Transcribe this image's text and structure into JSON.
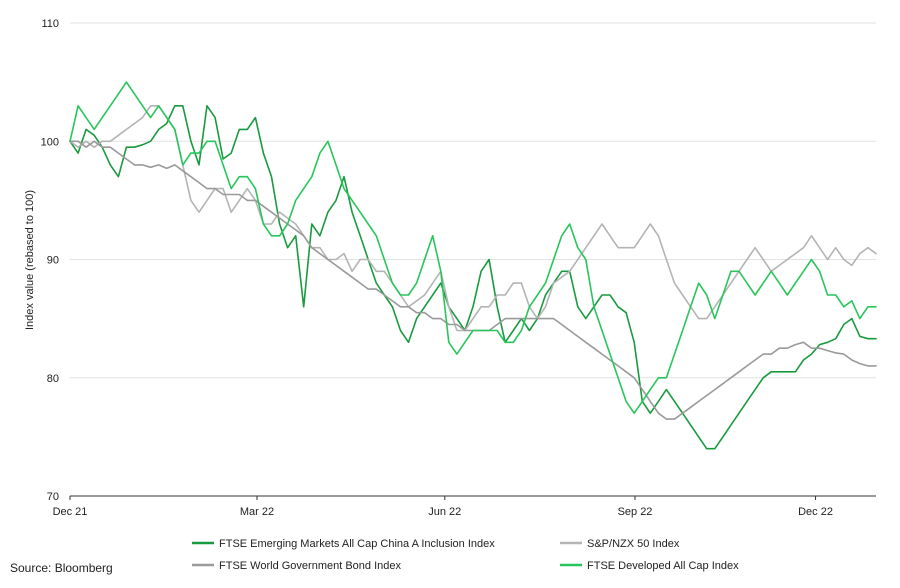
{
  "chart_data": {
    "type": "line",
    "ylabel": "Index value (rebased to 100)",
    "ylim": [
      70,
      110
    ],
    "yticks": [
      70,
      80,
      90,
      100,
      110
    ],
    "xlim": [
      0,
      100
    ],
    "xticks": [
      {
        "label": "Dec 21",
        "x": 0
      },
      {
        "label": "Mar 22",
        "x": 23.2
      },
      {
        "label": "Jun 22",
        "x": 46.5
      },
      {
        "label": "Sep 22",
        "x": 70.1
      },
      {
        "label": "Dec 22",
        "x": 92.5
      }
    ],
    "grid": "horizontal",
    "legend_position": "bottom",
    "series": [
      {
        "name": "FTSE Emerging Markets All Cap China A Inclusion Index",
        "color": "#1a9a3f",
        "x": [
          0,
          1,
          2,
          3,
          4,
          5,
          6,
          7,
          8,
          9,
          10,
          11,
          12,
          13,
          14,
          15,
          16,
          17,
          18,
          19,
          20,
          21,
          22,
          23,
          24,
          25,
          26,
          27,
          28,
          29,
          30,
          31,
          32,
          33,
          34,
          35,
          36,
          37,
          38,
          39,
          40,
          41,
          42,
          43,
          44,
          45,
          46,
          47,
          48,
          49,
          50,
          51,
          52,
          53,
          54,
          55,
          56,
          57,
          58,
          59,
          60,
          61,
          62,
          63,
          64,
          65,
          66,
          67,
          68,
          69,
          70,
          71,
          72,
          73,
          74,
          75,
          76,
          77,
          78,
          79,
          80,
          81,
          82,
          83,
          84,
          85,
          86,
          87,
          88,
          89,
          90,
          91,
          92,
          93,
          94,
          95,
          96,
          97,
          98,
          99,
          100
        ],
        "values": [
          100,
          99,
          101,
          100.5,
          99.5,
          98,
          97,
          99.5,
          99.5,
          99.7,
          100,
          101,
          101.5,
          103,
          103,
          100,
          98,
          103,
          102,
          98.5,
          99,
          101,
          101,
          102,
          99,
          97,
          93,
          91,
          92,
          86,
          93,
          92,
          94,
          95,
          97,
          94,
          92,
          90,
          88,
          87,
          86,
          84,
          83,
          85,
          86,
          87,
          88,
          86,
          85,
          84,
          86,
          89,
          90,
          86,
          83,
          84,
          85,
          84,
          85,
          87,
          88,
          89,
          89,
          86,
          85,
          86,
          87,
          87,
          86,
          85.5,
          83,
          78,
          77,
          78,
          79,
          78,
          77,
          76,
          75,
          74,
          74,
          75,
          76,
          77,
          78,
          79,
          80,
          80.5,
          80.5,
          80.5,
          80.5,
          81.5,
          82,
          82.8,
          83,
          83.3,
          84.5,
          85,
          83.5,
          83.3,
          83.3
        ]
      },
      {
        "name": "S&P/NZX 50 Index",
        "color": "#b4b4b4",
        "x": [
          0,
          1,
          2,
          3,
          4,
          5,
          6,
          7,
          8,
          9,
          10,
          11,
          12,
          13,
          14,
          15,
          16,
          17,
          18,
          19,
          20,
          21,
          22,
          23,
          24,
          25,
          26,
          27,
          28,
          29,
          30,
          31,
          32,
          33,
          34,
          35,
          36,
          37,
          38,
          39,
          40,
          41,
          42,
          43,
          44,
          45,
          46,
          47,
          48,
          49,
          50,
          51,
          52,
          53,
          54,
          55,
          56,
          57,
          58,
          59,
          60,
          61,
          62,
          63,
          64,
          65,
          66,
          67,
          68,
          69,
          70,
          71,
          72,
          73,
          74,
          75,
          76,
          77,
          78,
          79,
          80,
          81,
          82,
          83,
          84,
          85,
          86,
          87,
          88,
          89,
          90,
          91,
          92,
          93,
          94,
          95,
          96,
          97,
          98,
          99,
          100
        ],
        "values": [
          100,
          99.5,
          100,
          99.5,
          100,
          100,
          100.5,
          101,
          101.5,
          102,
          103,
          103,
          102,
          101,
          98,
          95,
          94,
          95,
          96,
          96,
          94,
          95,
          96,
          95,
          93,
          93,
          94,
          93.5,
          93,
          92,
          91,
          91,
          90,
          90,
          90.5,
          89,
          90,
          90,
          89,
          89,
          88,
          87,
          86,
          86.5,
          87,
          88,
          89,
          86,
          84,
          84,
          85,
          86,
          86,
          87,
          87,
          88,
          88,
          86,
          85,
          86,
          88,
          88.5,
          89,
          90,
          91,
          92,
          93,
          92,
          91,
          91,
          91,
          92,
          93,
          92,
          90,
          88,
          87,
          86,
          85,
          85,
          86,
          87,
          88,
          89,
          90,
          91,
          90,
          89,
          89.5,
          90,
          90.5,
          91,
          92,
          91,
          90,
          91,
          90,
          89.5,
          90.5,
          91,
          90.5
        ]
      },
      {
        "name": "FTSE World Government Bond Index",
        "color": "#9a9a9a",
        "x": [
          0,
          1,
          2,
          3,
          4,
          5,
          6,
          7,
          8,
          9,
          10,
          11,
          12,
          13,
          14,
          15,
          16,
          17,
          18,
          19,
          20,
          21,
          22,
          23,
          24,
          25,
          26,
          27,
          28,
          29,
          30,
          31,
          32,
          33,
          34,
          35,
          36,
          37,
          38,
          39,
          40,
          41,
          42,
          43,
          44,
          45,
          46,
          47,
          48,
          49,
          50,
          51,
          52,
          53,
          54,
          55,
          56,
          57,
          58,
          59,
          60,
          61,
          62,
          63,
          64,
          65,
          66,
          67,
          68,
          69,
          70,
          71,
          72,
          73,
          74,
          75,
          76,
          77,
          78,
          79,
          80,
          81,
          82,
          83,
          84,
          85,
          86,
          87,
          88,
          89,
          90,
          91,
          92,
          93,
          94,
          95,
          96,
          97,
          98,
          99,
          100
        ],
        "values": [
          100,
          100,
          99.5,
          100,
          99.5,
          99.5,
          99,
          98.5,
          98,
          98,
          97.8,
          98,
          97.7,
          98,
          97.5,
          97,
          96.5,
          96,
          96,
          95.5,
          95.5,
          95.5,
          95,
          95,
          94.5,
          94,
          93.5,
          93,
          92.5,
          92,
          91,
          90.5,
          90,
          89.5,
          89,
          88.5,
          88,
          87.5,
          87.5,
          87,
          86.5,
          86,
          86,
          85.5,
          85.5,
          85,
          85,
          84.5,
          84.5,
          84,
          84,
          84,
          84,
          84.5,
          85,
          85,
          85,
          85,
          85,
          85,
          85,
          84.5,
          84,
          83.5,
          83,
          82.5,
          82,
          81.5,
          81,
          80.5,
          80,
          79,
          78,
          77,
          76.5,
          76.5,
          77,
          77.5,
          78,
          78.5,
          79,
          79.5,
          80,
          80.5,
          81,
          81.5,
          82,
          82,
          82.5,
          82.5,
          82.8,
          83,
          82.5,
          82.5,
          82.3,
          82.1,
          82,
          81.5,
          81.2,
          81,
          81
        ]
      },
      {
        "name": "FTSE Developed All Cap Index",
        "color": "#27c65a",
        "x": [
          0,
          1,
          2,
          3,
          4,
          5,
          6,
          7,
          8,
          9,
          10,
          11,
          12,
          13,
          14,
          15,
          16,
          17,
          18,
          19,
          20,
          21,
          22,
          23,
          24,
          25,
          26,
          27,
          28,
          29,
          30,
          31,
          32,
          33,
          34,
          35,
          36,
          37,
          38,
          39,
          40,
          41,
          42,
          43,
          44,
          45,
          46,
          47,
          48,
          49,
          50,
          51,
          52,
          53,
          54,
          55,
          56,
          57,
          58,
          59,
          60,
          61,
          62,
          63,
          64,
          65,
          66,
          67,
          68,
          69,
          70,
          71,
          72,
          73,
          74,
          75,
          76,
          77,
          78,
          79,
          80,
          81,
          82,
          83,
          84,
          85,
          86,
          87,
          88,
          89,
          90,
          91,
          92,
          93,
          94,
          95,
          96,
          97,
          98,
          99,
          100
        ],
        "values": [
          100,
          103,
          102,
          101,
          102,
          103,
          104,
          105,
          104,
          103,
          102,
          103,
          102,
          101,
          98,
          99,
          99,
          100,
          100,
          98,
          96,
          97,
          97,
          96,
          93,
          92,
          92,
          93,
          95,
          96,
          97,
          99,
          100,
          98,
          96,
          95,
          94,
          93,
          92,
          90,
          88,
          87,
          87,
          88,
          90,
          92,
          89,
          83,
          82,
          83,
          84,
          84,
          84,
          84,
          83,
          83,
          84,
          86,
          87,
          88,
          90,
          92,
          93,
          91,
          90,
          86,
          84,
          82,
          80,
          78,
          77,
          78,
          79,
          80,
          80,
          82,
          84,
          86,
          88,
          87,
          85,
          87,
          89,
          89,
          88,
          87,
          88,
          89,
          88,
          87,
          88,
          89,
          90,
          89,
          87,
          87,
          86,
          86.5,
          85,
          86,
          86
        ]
      }
    ]
  },
  "source": "Source: Bloomberg"
}
